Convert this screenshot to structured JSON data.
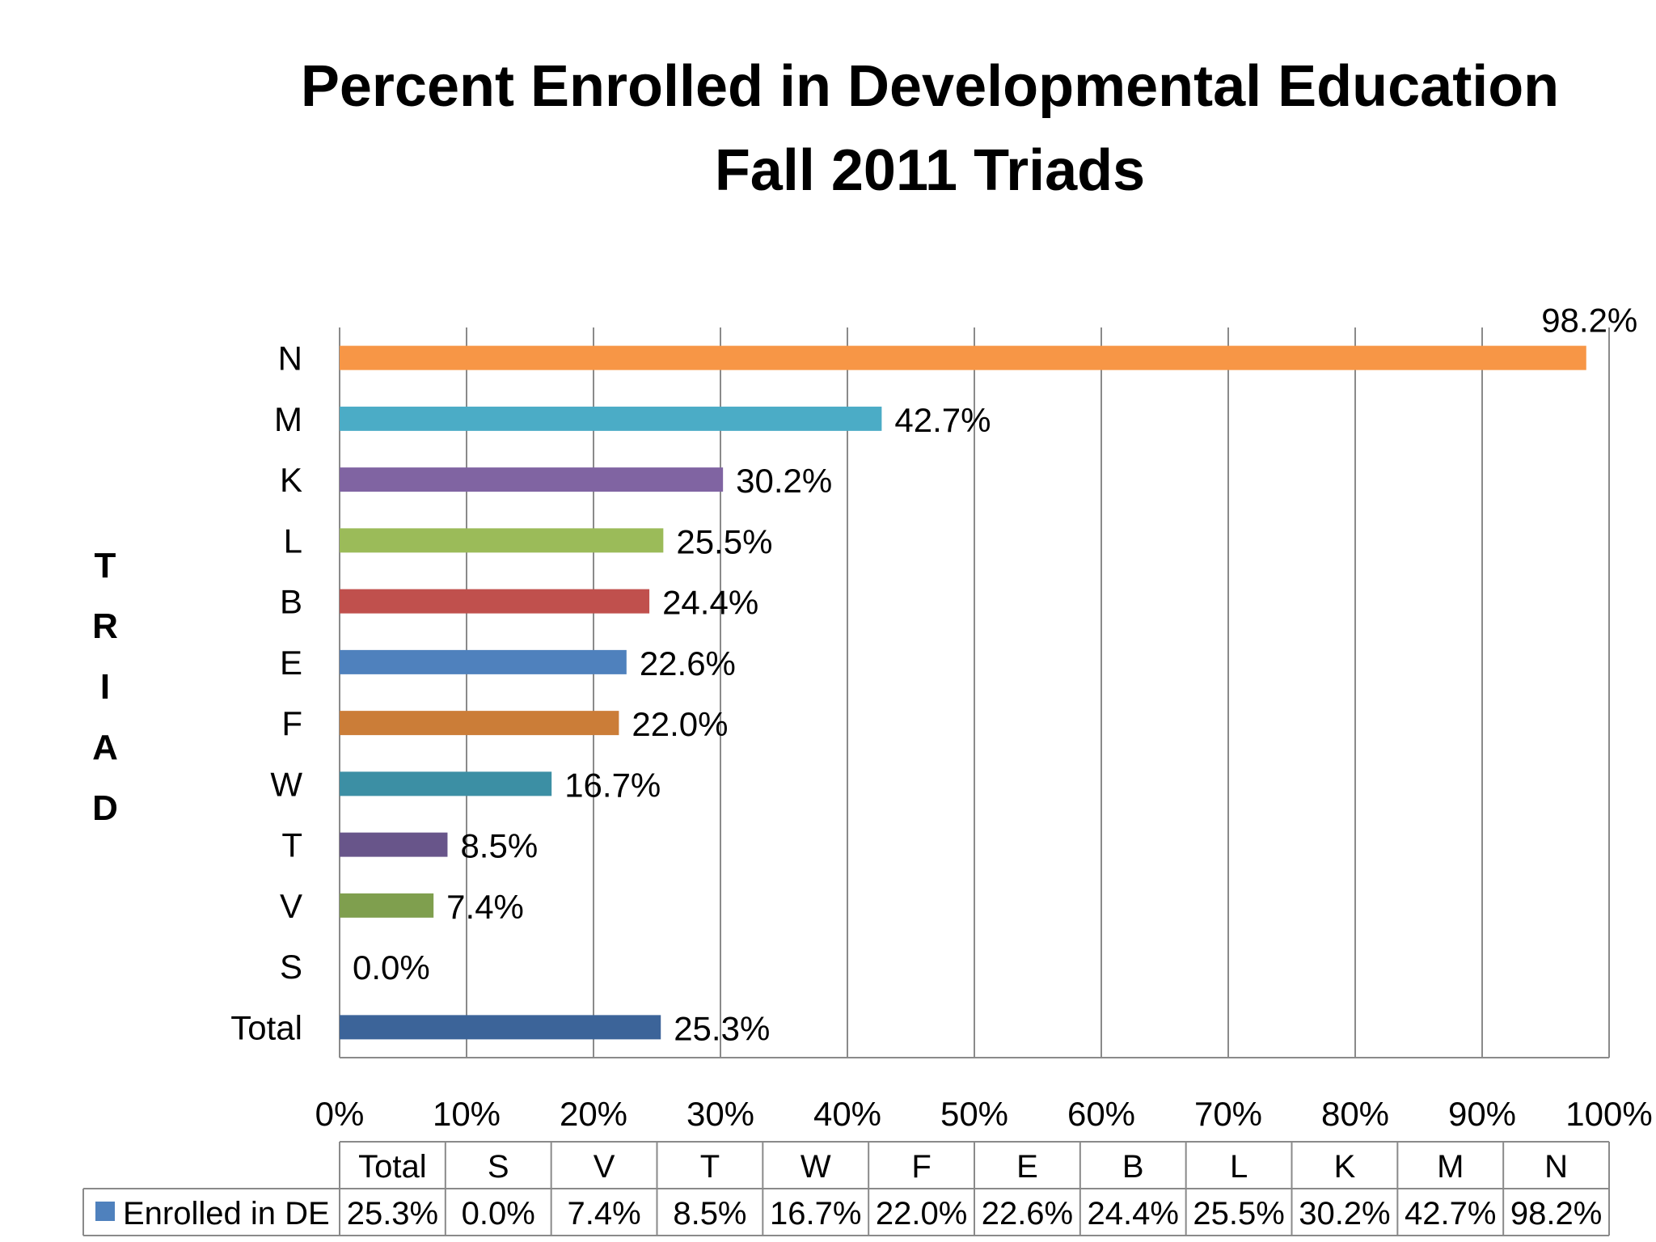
{
  "chart_data": {
    "type": "bar",
    "orientation": "horizontal",
    "title_lines": [
      "Percent Enrolled  in Developmental Education",
      "Fall 2011 Triads"
    ],
    "ylabel_letters": [
      "T",
      "R",
      "I",
      "A",
      "D"
    ],
    "categories": [
      "Total",
      "S",
      "V",
      "T",
      "W",
      "F",
      "E",
      "B",
      "L",
      "K",
      "M",
      "N"
    ],
    "series": [
      {
        "name": "Enrolled in DE",
        "values": [
          25.3,
          0.0,
          7.4,
          8.5,
          16.7,
          22.0,
          22.6,
          24.4,
          25.5,
          30.2,
          42.7,
          98.2
        ],
        "labels": [
          "25.3%",
          "0.0%",
          "7.4%",
          "8.5%",
          "16.7%",
          "22.0%",
          "22.6%",
          "24.4%",
          "25.5%",
          "30.2%",
          "42.7%",
          "98.2%"
        ]
      }
    ],
    "bar_colors": [
      "#3C6499",
      "#4F81BD",
      "#7F9F4E",
      "#68558A",
      "#3C8FA4",
      "#CB7D38",
      "#4F81BD",
      "#C0504D",
      "#9BBB59",
      "#8064A2",
      "#4BACC6",
      "#F79646"
    ],
    "xlim": [
      0,
      100
    ],
    "xticks": [
      "0%",
      "10%",
      "20%",
      "30%",
      "40%",
      "50%",
      "60%",
      "70%",
      "80%",
      "90%",
      "100%"
    ],
    "grid": "vertical",
    "legend_key_color": "#4F81BD",
    "data_table": true
  }
}
